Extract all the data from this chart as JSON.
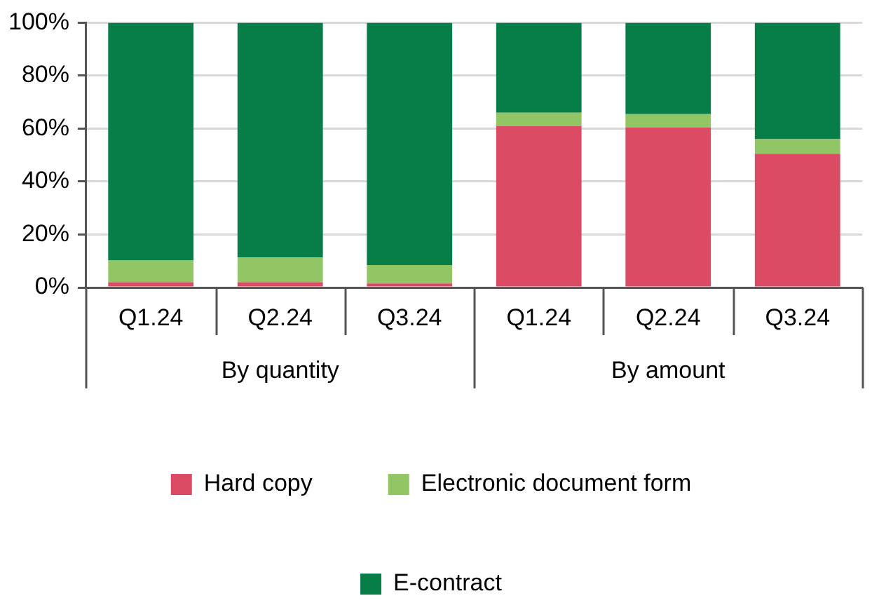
{
  "chart_data": {
    "type": "bar",
    "stacked": true,
    "categories": [
      "Q1.24",
      "Q2.24",
      "Q3.24",
      "Q1.24",
      "Q2.24",
      "Q3.24"
    ],
    "series": [
      {
        "name": "Hard copy",
        "color": "#db4c64",
        "values": [
          2,
          2,
          1.5,
          61,
          60.5,
          50.5
        ]
      },
      {
        "name": "Electronic document form",
        "color": "#92c664",
        "values": [
          8.3,
          9.3,
          7,
          5,
          5,
          5.5
        ]
      },
      {
        "name": "E-contract",
        "color": "#077d48",
        "values": [
          89.7,
          88.7,
          91.5,
          34,
          34.5,
          44
        ]
      }
    ],
    "ylim": [
      0,
      100
    ],
    "yticks": [
      {
        "value": 0,
        "label": "0%"
      },
      {
        "value": 20,
        "label": "20%"
      },
      {
        "value": 40,
        "label": "40%"
      },
      {
        "value": 60,
        "label": "60%"
      },
      {
        "value": 80,
        "label": "80%"
      },
      {
        "value": 100,
        "label": "100%"
      }
    ],
    "grid": "y",
    "legend": "bottom",
    "annotations": [
      "By quantity",
      "By amount"
    ]
  }
}
